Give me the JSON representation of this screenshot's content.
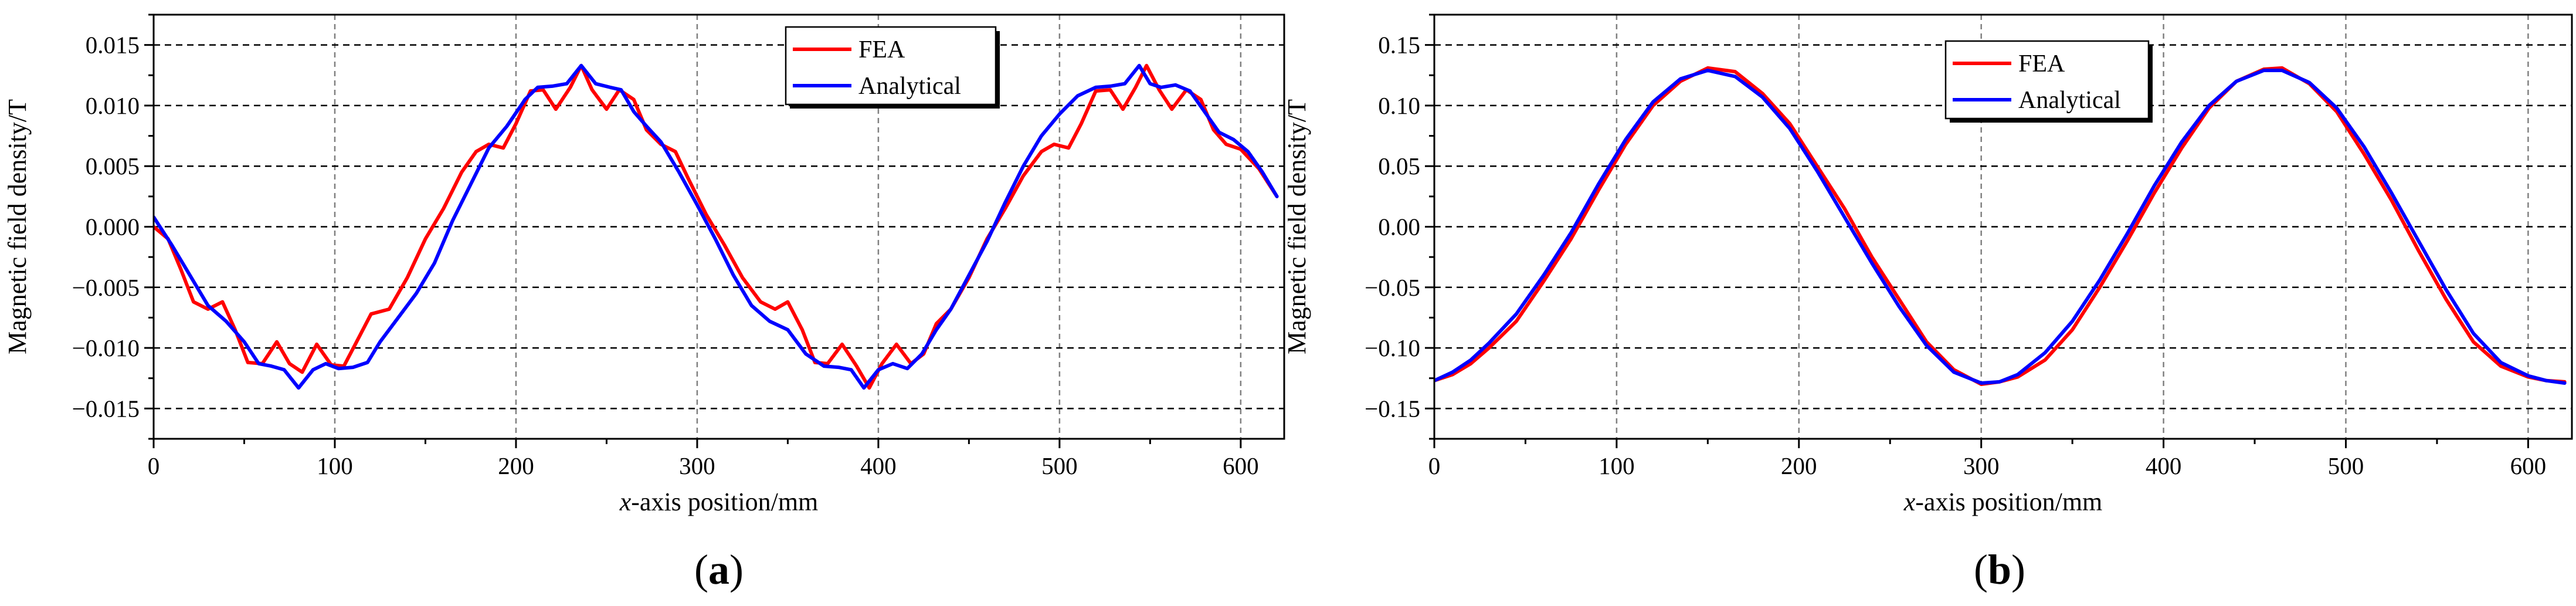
{
  "chart_data": [
    {
      "id": "a",
      "type": "line",
      "panel_label": "a",
      "xlabel": "x-axis position/mm",
      "ylabel": "Magnetic field density/T",
      "xlim": [
        0,
        624
      ],
      "ylim": [
        -0.0175,
        0.0175
      ],
      "xticks": [
        0,
        100,
        200,
        300,
        400,
        500,
        600
      ],
      "yticks": [
        -0.015,
        -0.01,
        -0.005,
        0.0,
        0.005,
        0.01,
        0.015
      ],
      "ytick_labels": [
        "−0.015",
        "−0.010",
        "−0.005",
        "0.000",
        "0.005",
        "0.010",
        "0.015"
      ],
      "grid": true,
      "legend_position": "top-right",
      "series": [
        {
          "name": "FEA",
          "color": "#ff0000",
          "x": [
            0,
            8,
            15,
            22,
            30,
            38,
            45,
            52,
            60,
            68,
            75,
            82,
            90,
            98,
            105,
            112,
            120,
            130,
            140,
            150,
            160,
            170,
            178,
            185,
            193,
            200,
            208,
            215,
            222,
            230,
            236,
            242,
            250,
            257,
            265,
            272,
            280,
            288,
            295,
            305,
            315,
            325,
            335,
            343,
            350,
            358,
            365,
            372,
            380,
            388,
            395,
            402,
            410,
            418,
            425,
            432,
            440,
            450,
            460,
            470,
            480,
            490,
            497,
            505,
            512,
            520,
            528,
            535,
            542,
            548,
            555,
            562,
            570,
            578,
            585,
            592,
            600,
            610,
            620
          ],
          "values": [
            0.0,
            -0.001,
            -0.0035,
            -0.0062,
            -0.0068,
            -0.0062,
            -0.0085,
            -0.0112,
            -0.0113,
            -0.0095,
            -0.0113,
            -0.012,
            -0.0097,
            -0.0114,
            -0.0115,
            -0.0095,
            -0.0072,
            -0.0068,
            -0.0042,
            -0.001,
            0.0015,
            0.0045,
            0.0062,
            0.0068,
            0.0065,
            0.0085,
            0.0112,
            0.0113,
            0.0097,
            0.0115,
            0.0133,
            0.0113,
            0.0097,
            0.0113,
            0.0105,
            0.008,
            0.0068,
            0.0062,
            0.004,
            0.001,
            -0.0015,
            -0.0042,
            -0.0062,
            -0.0068,
            -0.0062,
            -0.0085,
            -0.0112,
            -0.0113,
            -0.0097,
            -0.0115,
            -0.0133,
            -0.0113,
            -0.0097,
            -0.0113,
            -0.0105,
            -0.008,
            -0.0068,
            -0.0042,
            -0.001,
            0.0015,
            0.0042,
            0.0062,
            0.0068,
            0.0065,
            0.0085,
            0.0112,
            0.0113,
            0.0097,
            0.0115,
            0.0133,
            0.0113,
            0.0097,
            0.0113,
            0.0105,
            0.008,
            0.0068,
            0.0064,
            0.0048,
            0.0025
          ]
        },
        {
          "name": "Analytical",
          "color": "#0000ff",
          "x": [
            0,
            10,
            20,
            30,
            40,
            50,
            58,
            65,
            72,
            80,
            88,
            95,
            102,
            110,
            118,
            125,
            135,
            145,
            155,
            165,
            175,
            185,
            195,
            205,
            212,
            220,
            228,
            236,
            244,
            252,
            258,
            265,
            272,
            280,
            290,
            300,
            310,
            320,
            330,
            340,
            350,
            360,
            370,
            378,
            385,
            392,
            400,
            408,
            416,
            424,
            432,
            440,
            450,
            460,
            470,
            480,
            490,
            500,
            510,
            520,
            528,
            536,
            544,
            550,
            556,
            564,
            572,
            580,
            588,
            596,
            604,
            612,
            620
          ],
          "values": [
            0.0008,
            -0.0015,
            -0.004,
            -0.0065,
            -0.0078,
            -0.0095,
            -0.0113,
            -0.0115,
            -0.0118,
            -0.0133,
            -0.0118,
            -0.0113,
            -0.0117,
            -0.0116,
            -0.0112,
            -0.0095,
            -0.0075,
            -0.0055,
            -0.003,
            0.0005,
            0.0035,
            0.0065,
            0.0083,
            0.0105,
            0.0115,
            0.0116,
            0.0118,
            0.0133,
            0.0118,
            0.0115,
            0.0113,
            0.0095,
            0.0083,
            0.007,
            0.0045,
            0.0018,
            -0.001,
            -0.004,
            -0.0065,
            -0.0078,
            -0.0085,
            -0.0105,
            -0.0115,
            -0.0116,
            -0.0118,
            -0.0133,
            -0.0118,
            -0.0113,
            -0.0117,
            -0.0105,
            -0.0085,
            -0.0068,
            -0.004,
            -0.0012,
            0.002,
            0.005,
            0.0075,
            0.0093,
            0.0108,
            0.0115,
            0.0116,
            0.0118,
            0.0133,
            0.0118,
            0.0115,
            0.0117,
            0.0112,
            0.0095,
            0.0078,
            0.0072,
            0.0062,
            0.0045,
            0.0025
          ]
        }
      ]
    },
    {
      "id": "b",
      "type": "line",
      "panel_label": "b",
      "xlabel": "x-axis position/mm",
      "ylabel": "Magnetic field density/T",
      "xlim": [
        0,
        624
      ],
      "ylim": [
        -0.175,
        0.175
      ],
      "xticks": [
        0,
        100,
        200,
        300,
        400,
        500,
        600
      ],
      "yticks": [
        -0.15,
        -0.1,
        -0.05,
        0.0,
        0.05,
        0.1,
        0.15
      ],
      "ytick_labels": [
        "−0.15",
        "−0.10",
        "−0.05",
        "0.00",
        "0.05",
        "0.10",
        "0.15"
      ],
      "grid": true,
      "legend_position": "top-right",
      "series": [
        {
          "name": "FEA",
          "color": "#ff0000",
          "x": [
            0,
            10,
            20,
            30,
            45,
            60,
            75,
            90,
            105,
            120,
            135,
            150,
            165,
            180,
            195,
            210,
            225,
            240,
            255,
            270,
            285,
            300,
            310,
            320,
            335,
            350,
            365,
            380,
            395,
            410,
            425,
            440,
            455,
            465,
            480,
            495,
            510,
            525,
            540,
            555,
            570,
            585,
            600,
            610,
            620
          ],
          "values": [
            -0.127,
            -0.122,
            -0.113,
            -0.1,
            -0.078,
            -0.045,
            -0.01,
            0.03,
            0.068,
            0.1,
            0.12,
            0.131,
            0.128,
            0.11,
            0.085,
            0.05,
            0.015,
            -0.025,
            -0.06,
            -0.095,
            -0.118,
            -0.13,
            -0.128,
            -0.124,
            -0.11,
            -0.085,
            -0.05,
            -0.012,
            0.028,
            0.065,
            0.098,
            0.12,
            0.13,
            0.131,
            0.118,
            0.095,
            0.06,
            0.022,
            -0.02,
            -0.06,
            -0.095,
            -0.115,
            -0.124,
            -0.127,
            -0.128
          ]
        },
        {
          "name": "Analytical",
          "color": "#0000ff",
          "x": [
            0,
            10,
            20,
            30,
            45,
            60,
            75,
            90,
            105,
            120,
            135,
            150,
            165,
            180,
            195,
            210,
            225,
            240,
            255,
            270,
            285,
            300,
            310,
            320,
            335,
            350,
            365,
            380,
            395,
            410,
            425,
            440,
            455,
            465,
            480,
            495,
            510,
            525,
            540,
            555,
            570,
            585,
            600,
            610,
            620
          ],
          "values": [
            -0.127,
            -0.12,
            -0.11,
            -0.096,
            -0.072,
            -0.04,
            -0.005,
            0.035,
            0.072,
            0.103,
            0.122,
            0.129,
            0.124,
            0.107,
            0.081,
            0.046,
            0.008,
            -0.03,
            -0.066,
            -0.098,
            -0.12,
            -0.129,
            -0.128,
            -0.122,
            -0.104,
            -0.078,
            -0.044,
            -0.006,
            0.034,
            0.07,
            0.1,
            0.12,
            0.129,
            0.129,
            0.119,
            0.098,
            0.066,
            0.028,
            -0.012,
            -0.052,
            -0.088,
            -0.112,
            -0.123,
            -0.127,
            -0.129
          ]
        }
      ]
    }
  ]
}
